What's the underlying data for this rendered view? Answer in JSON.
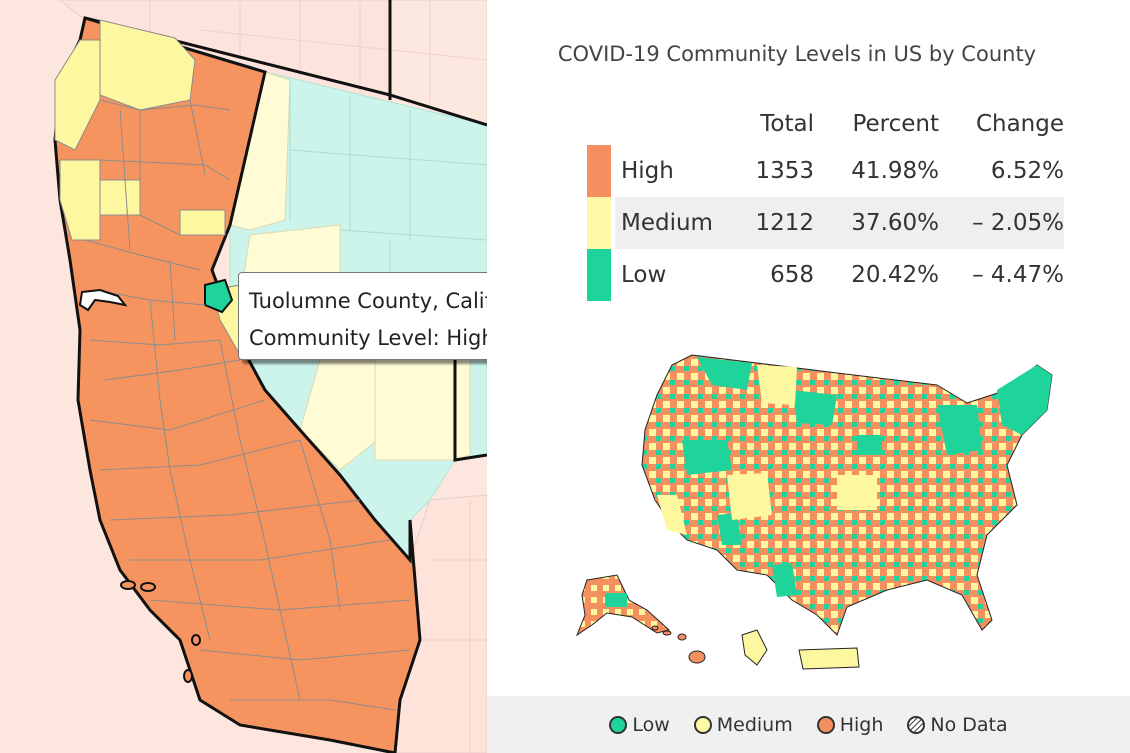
{
  "title": "COVID-19 Community Levels in US by County",
  "tooltip": {
    "line1": "Tuolumne County, California",
    "line2": "Community Level: High"
  },
  "summary": {
    "headers": {
      "total": "Total",
      "percent": "Percent",
      "change": "Change"
    },
    "rows": [
      {
        "level": "High",
        "total": "1353",
        "percent": "41.98%",
        "change": "6.52%"
      },
      {
        "level": "Medium",
        "total": "1212",
        "percent": "37.60%",
        "change": "– 2.05%"
      },
      {
        "level": "Low",
        "total": "658",
        "percent": "20.42%",
        "change": "– 4.47%"
      }
    ]
  },
  "legend": {
    "items": [
      {
        "label": "Low"
      },
      {
        "label": "Medium"
      },
      {
        "label": "High"
      },
      {
        "label": "No Data"
      }
    ]
  },
  "colors": {
    "high": "#f4905f",
    "medium": "#fdf9a4",
    "low": "#1fd49a",
    "high_faded": "#fde3da",
    "low_faded": "#cff5ec",
    "medium_faded": "#fffde0"
  }
}
